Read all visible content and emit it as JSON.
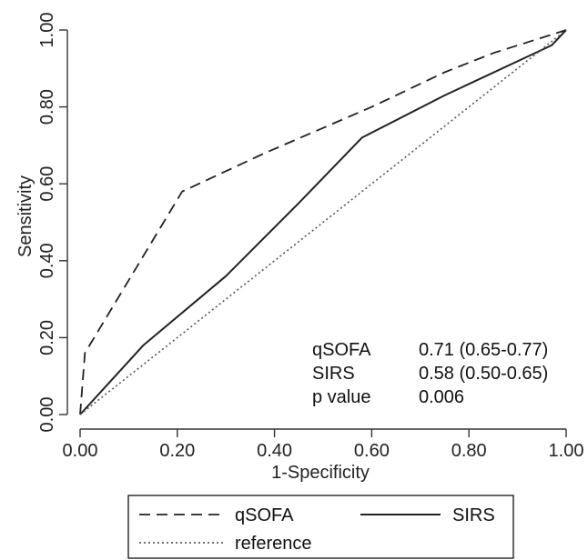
{
  "chart_data": {
    "type": "line",
    "xlabel": "1-Specificity",
    "ylabel": "Sensitivity",
    "xlim": [
      0,
      1
    ],
    "ylim": [
      0,
      1
    ],
    "x_ticks": [
      "0.00",
      "0.20",
      "0.40",
      "0.60",
      "0.80",
      "1.00"
    ],
    "y_ticks": [
      "0.00",
      "0.20",
      "0.40",
      "0.60",
      "0.80",
      "1.00"
    ],
    "grid": false,
    "legend_position": "bottom",
    "series": [
      {
        "name": "qSOFA",
        "style": "dashed",
        "x": [
          0.0,
          0.01,
          0.21,
          0.38,
          0.6,
          0.75,
          0.85,
          1.0
        ],
        "y": [
          0.0,
          0.16,
          0.58,
          0.68,
          0.8,
          0.89,
          0.94,
          1.0
        ]
      },
      {
        "name": "SIRS",
        "style": "solid",
        "x": [
          0.0,
          0.13,
          0.3,
          0.45,
          0.58,
          0.75,
          0.97,
          1.0
        ],
        "y": [
          0.0,
          0.18,
          0.36,
          0.55,
          0.72,
          0.83,
          0.96,
          1.0
        ]
      },
      {
        "name": "reference",
        "style": "dotted",
        "x": [
          0.0,
          1.0
        ],
        "y": [
          0.0,
          1.0
        ]
      }
    ],
    "annotation_rows": [
      {
        "label": "qSOFA",
        "value": "0.71 (0.65-0.77)"
      },
      {
        "label": "SIRS",
        "value": "0.58 (0.50-0.65)"
      },
      {
        "label": "p value",
        "value": "0.006"
      }
    ],
    "colors": {
      "line": "#222222",
      "axis": "#333333",
      "legend_border": "#111111"
    }
  }
}
